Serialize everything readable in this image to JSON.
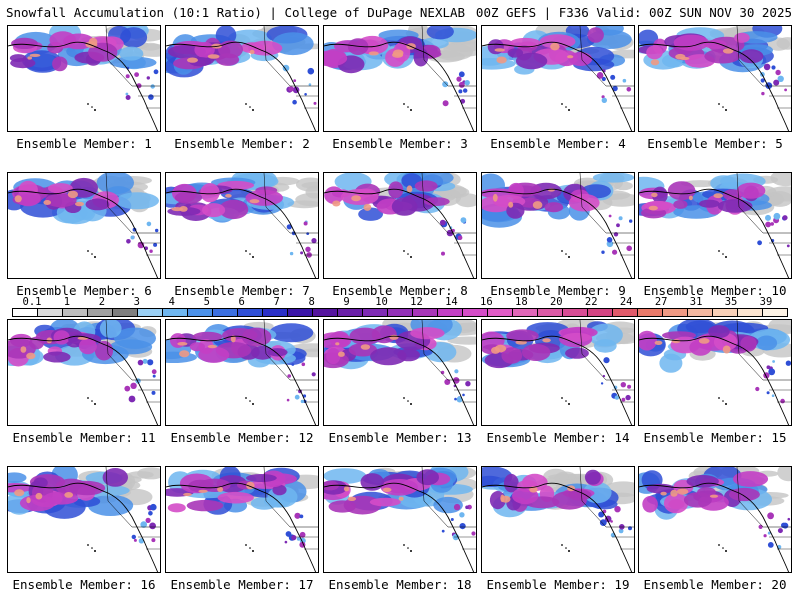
{
  "header": {
    "title": "Snowfall Accumulation (10:1 Ratio) | College of DuPage NEXLAB",
    "run_info": "00Z GEFS | F336 Valid: 00Z SUN NOV 30 2025"
  },
  "members": [
    "Ensemble Member: 1",
    "Ensemble Member: 2",
    "Ensemble Member: 3",
    "Ensemble Member: 4",
    "Ensemble Member: 5",
    "Ensemble Member: 6",
    "Ensemble Member: 7",
    "Ensemble Member: 8",
    "Ensemble Member: 9",
    "Ensemble Member: 10",
    "Ensemble Member: 11",
    "Ensemble Member: 12",
    "Ensemble Member: 13",
    "Ensemble Member: 14",
    "Ensemble Member: 15",
    "Ensemble Member: 16",
    "Ensemble Member: 17",
    "Ensemble Member: 18",
    "Ensemble Member: 19",
    "Ensemble Member: 20"
  ],
  "legend": {
    "labels": [
      "0.1",
      "1",
      "2",
      "3",
      "4",
      "5",
      "6",
      "7",
      "8",
      "9",
      "10",
      "12",
      "14",
      "16",
      "18",
      "20",
      "22",
      "24",
      "27",
      "31",
      "35",
      "39"
    ],
    "colors": [
      "#ffffff",
      "#dcdcdc",
      "#bebebe",
      "#a0a0a0",
      "#7e7e7e",
      "#9ad0f5",
      "#6eb6f0",
      "#4a90e8",
      "#3b6fe0",
      "#2f4fd6",
      "#2a2fc8",
      "#3a14a8",
      "#55149e",
      "#6a1fa8",
      "#7e2ab4",
      "#9330b8",
      "#a835b8",
      "#c23ec4",
      "#d44cc8",
      "#e05ac6",
      "#e066b8",
      "#dc5aa6",
      "#d84c94",
      "#d44482",
      "#e05a6a",
      "#ea7a6a",
      "#f09a84",
      "#f4b8a0",
      "#f8d0b8",
      "#fbe4d0",
      "#fdf2e4"
    ]
  }
}
